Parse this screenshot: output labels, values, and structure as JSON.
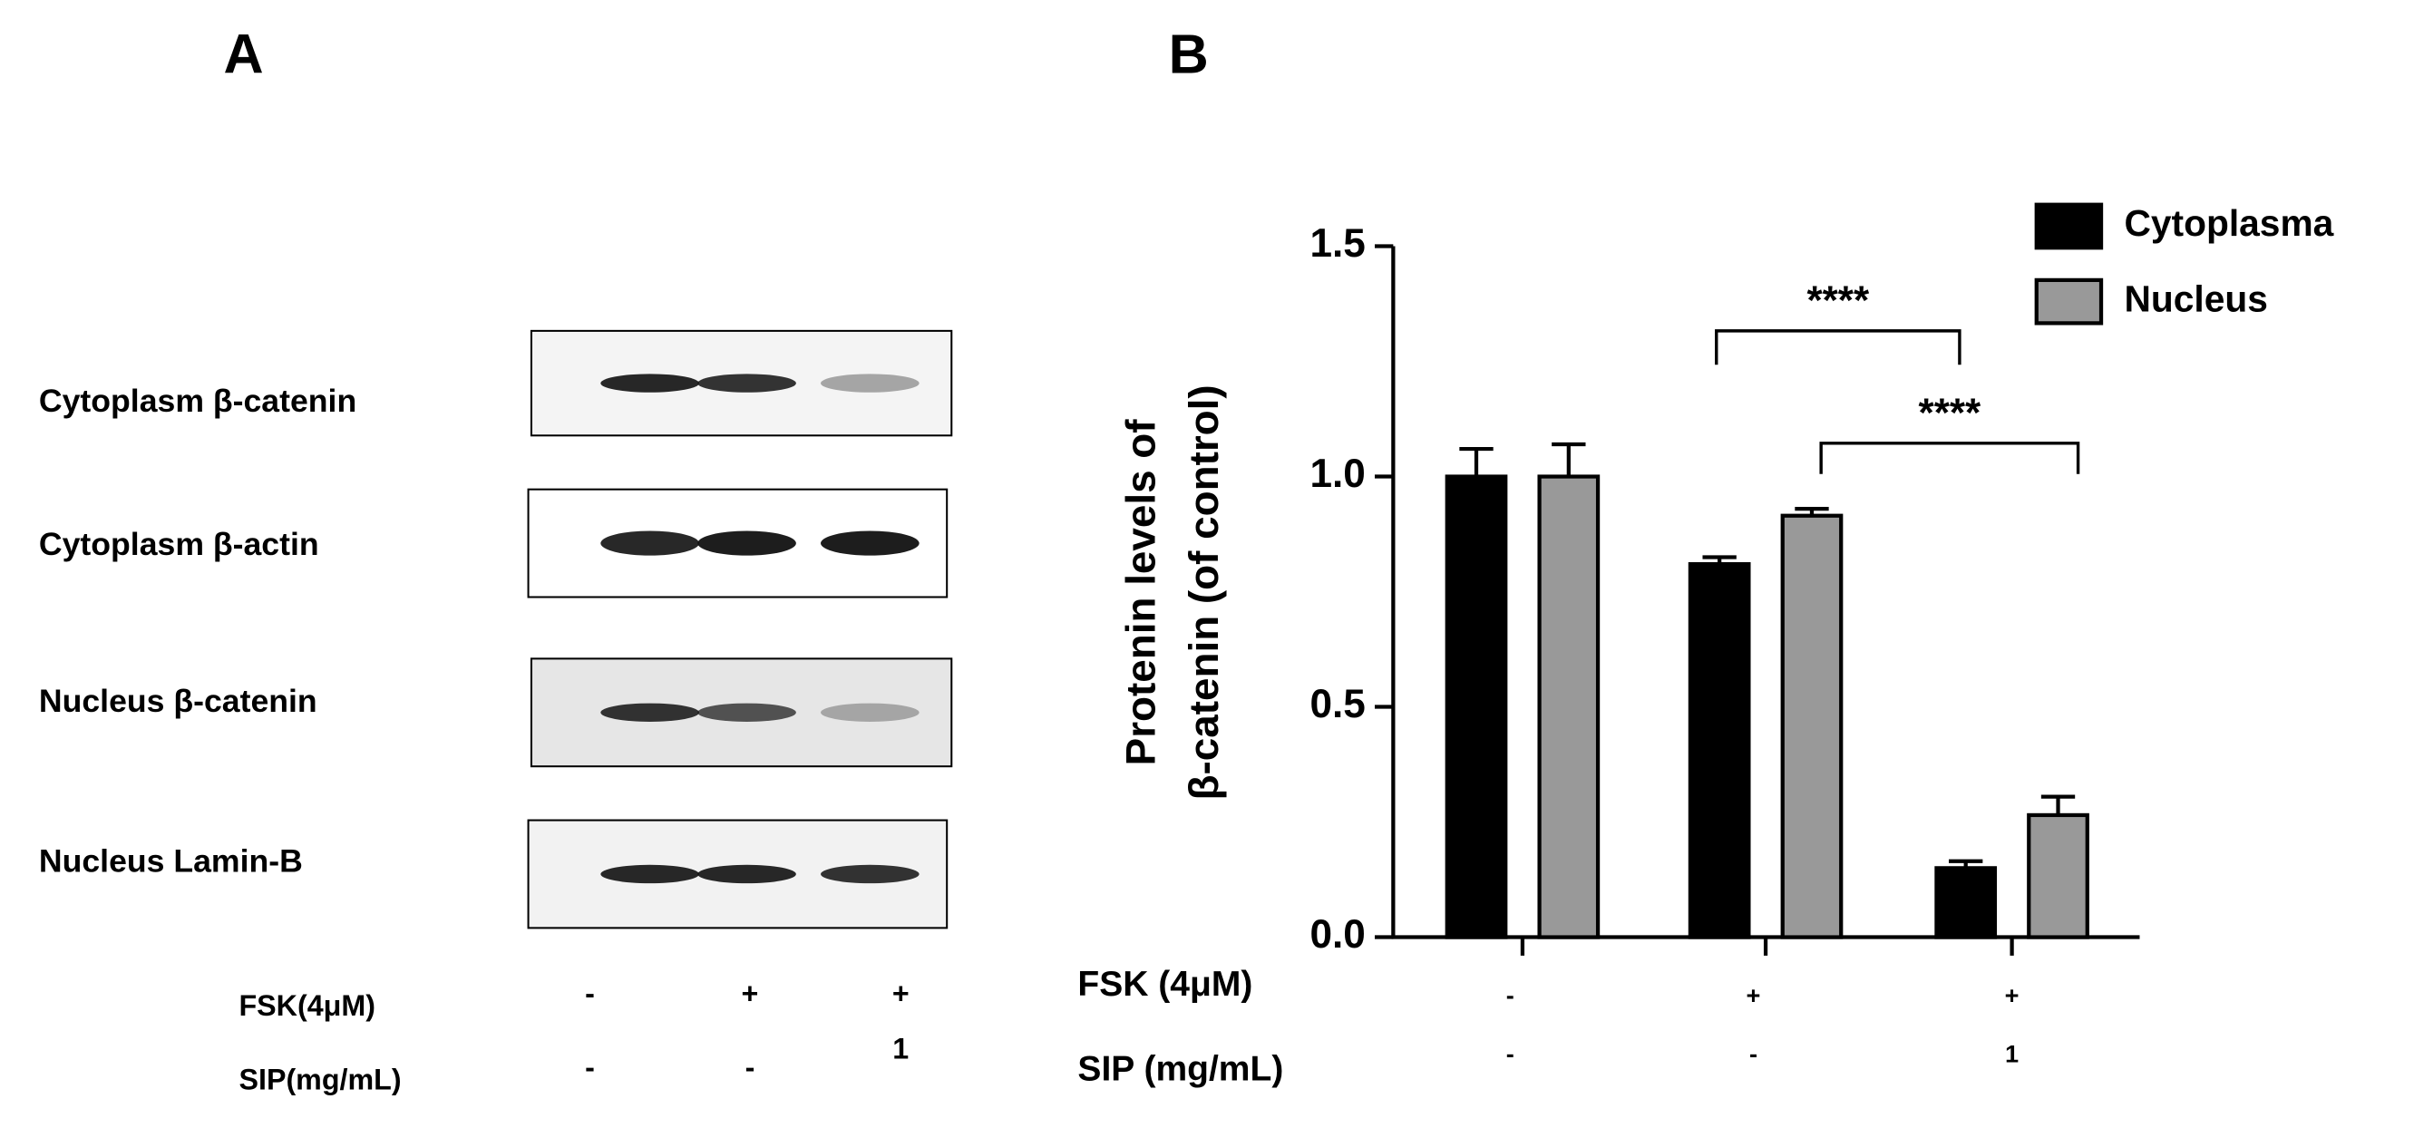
{
  "panel_labels": [
    "A",
    "B"
  ],
  "blot": {
    "rows": [
      "Cytoplasm β-catenin",
      "Cytoplasm β-actin",
      "Nucleus β-catenin",
      "Nucleus Lamin-B"
    ],
    "treatments": [
      {
        "label": "FSK(4μM)",
        "values": [
          "-",
          "+",
          "+"
        ]
      },
      {
        "label": "SIP(mg/mL)",
        "values": [
          "-",
          "-",
          "1"
        ]
      }
    ]
  },
  "chart_data": {
    "type": "bar",
    "ylabel": [
      "Protenin levels of",
      "β-catenin (of control)"
    ],
    "categories": [
      null,
      null,
      null
    ],
    "x_rows": [
      {
        "label": "FSK (4μM)",
        "values": [
          "-",
          "+",
          "+"
        ]
      },
      {
        "label": "SIP (mg/mL)",
        "values": [
          "-",
          "-",
          "1"
        ]
      }
    ],
    "series": [
      {
        "name": "Cytoplasma",
        "color": "#000000",
        "values": [
          1.0,
          0.81,
          0.15
        ],
        "errors": [
          0.06,
          0.015,
          0.015
        ]
      },
      {
        "name": "Nucleus",
        "color": "#999999",
        "values": [
          1.0,
          0.915,
          0.265
        ],
        "errors": [
          0.07,
          0.015,
          0.04
        ]
      }
    ],
    "ylim": [
      0,
      1.5
    ],
    "yticks": [
      {
        "value": 0,
        "label": "0.0"
      },
      0.5,
      {
        "value": 1,
        "label": "1.0"
      },
      1.5
    ],
    "legend": "upper right",
    "annotations": [
      "****",
      "****"
    ]
  }
}
